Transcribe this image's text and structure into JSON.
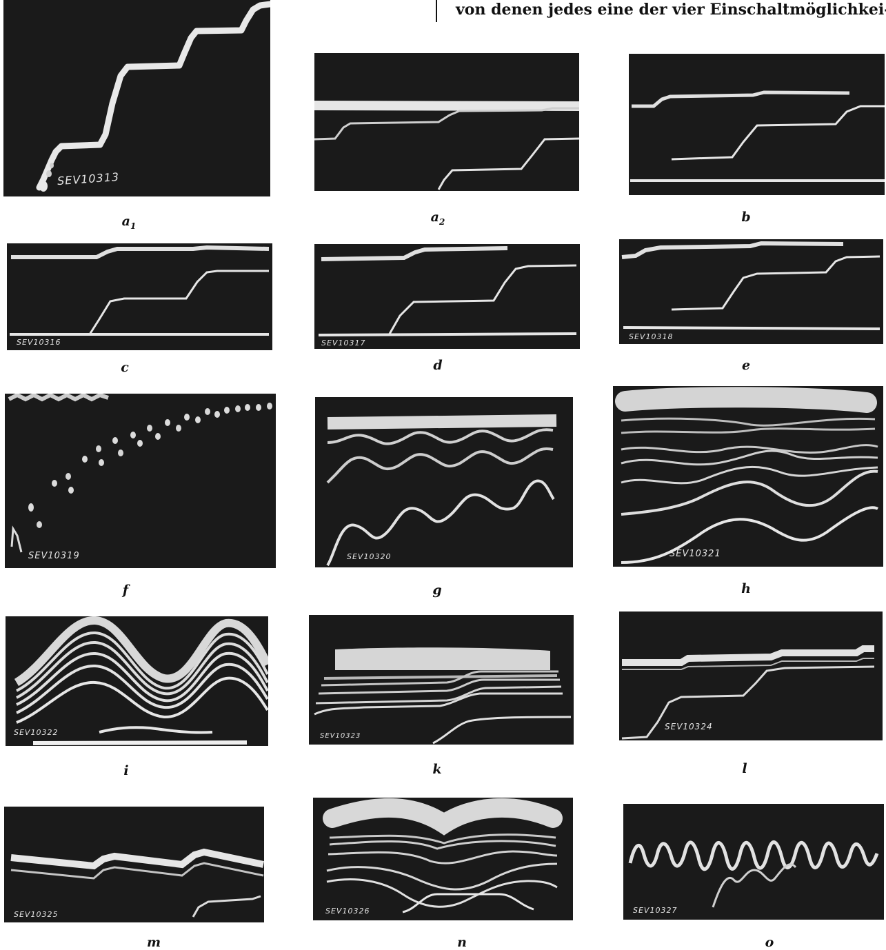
{
  "header": {
    "text": "von denen jedes eine der vier Einschaltmöglichkei-"
  },
  "figures": {
    "a1": {
      "caption": "a",
      "caption_sub": "1",
      "label": "SEV10313"
    },
    "a2": {
      "caption": "a",
      "caption_sub": "2"
    },
    "b": {
      "caption": "b"
    },
    "c": {
      "caption": "c",
      "label": "SEV10316"
    },
    "d": {
      "caption": "d",
      "label": "SEV10317"
    },
    "e": {
      "caption": "e",
      "label": "SEV10318"
    },
    "f": {
      "caption": "f",
      "label": "SEV10319"
    },
    "g": {
      "caption": "g",
      "label": "SEV10320"
    },
    "h": {
      "caption": "h",
      "label": "SEV10321"
    },
    "i": {
      "caption": "i",
      "label": "SEV10322"
    },
    "k": {
      "caption": "k",
      "label": "SEV10323"
    },
    "l": {
      "caption": "l",
      "label": "SEV10324"
    },
    "m": {
      "caption": "m",
      "label": "SEV10325"
    },
    "n": {
      "caption": "n",
      "label": "SEV10326"
    },
    "o": {
      "caption": "o",
      "label": "SEV10327"
    }
  }
}
